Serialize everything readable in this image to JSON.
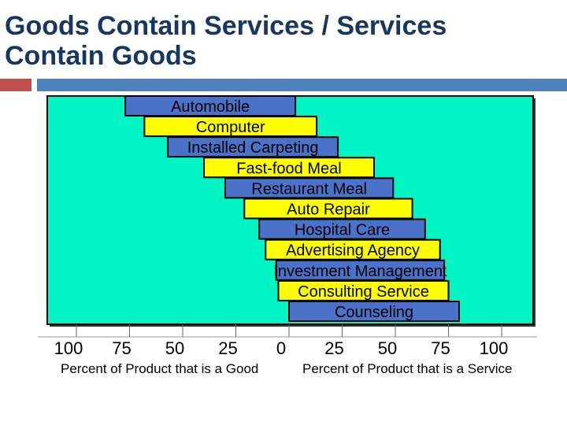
{
  "title": {
    "line1": "Goods Contain Services / Services",
    "line2": "Contain Goods"
  },
  "colors": {
    "title": "#17375e",
    "accent_square": "#c0504d",
    "accent_bar": "#4f81bd",
    "plot_bg": "#00f5c4",
    "bar_good": "#4a72c8",
    "bar_service": "#ffff00"
  },
  "chart_data": {
    "type": "bar",
    "orientation": "horizontal",
    "title": "Goods Contain Services / Services Contain Goods",
    "xlabel_left": "Percent of Product that is a Good",
    "xlabel_right": "Percent of Product that is a Service",
    "x_tick_labels": [
      "100",
      "75",
      "50",
      "25",
      "0",
      "25",
      "50",
      "75",
      "100"
    ],
    "x_ticks": [
      -100,
      -75,
      -50,
      -25,
      0,
      25,
      50,
      75,
      100
    ],
    "xlim": [
      -100,
      100
    ],
    "grid": false,
    "categories": [
      "Automobile",
      "Computer",
      "Installed Carpeting",
      "Fast-food Meal",
      "Restaurant Meal",
      "Auto Repair",
      "Hospital Care",
      "Advertising Agency",
      "Investment Management",
      "Consulting Service",
      "Counseling"
    ],
    "bars": [
      {
        "label": "Automobile",
        "start": -77,
        "end": 3,
        "color": "#4a72c8"
      },
      {
        "label": "Computer",
        "start": -68,
        "end": 13,
        "color": "#ffff00"
      },
      {
        "label": "Installed Carpeting",
        "start": -57,
        "end": 23,
        "color": "#4a72c8"
      },
      {
        "label": "Fast-food Meal",
        "start": -40,
        "end": 40,
        "color": "#ffff00"
      },
      {
        "label": "Restaurant Meal",
        "start": -30,
        "end": 49,
        "color": "#4a72c8"
      },
      {
        "label": "Auto Repair",
        "start": -21,
        "end": 58,
        "color": "#ffff00"
      },
      {
        "label": "Hospital Care",
        "start": -14,
        "end": 64,
        "color": "#4a72c8"
      },
      {
        "label": "Advertising Agency",
        "start": -11,
        "end": 71,
        "color": "#ffff00"
      },
      {
        "label": "Investment Management",
        "start": -6,
        "end": 73,
        "color": "#4a72c8"
      },
      {
        "label": "Consulting Service",
        "start": -5,
        "end": 75,
        "color": "#ffff00"
      },
      {
        "label": "Counseling",
        "start": 0,
        "end": 80,
        "color": "#4a72c8"
      }
    ]
  }
}
